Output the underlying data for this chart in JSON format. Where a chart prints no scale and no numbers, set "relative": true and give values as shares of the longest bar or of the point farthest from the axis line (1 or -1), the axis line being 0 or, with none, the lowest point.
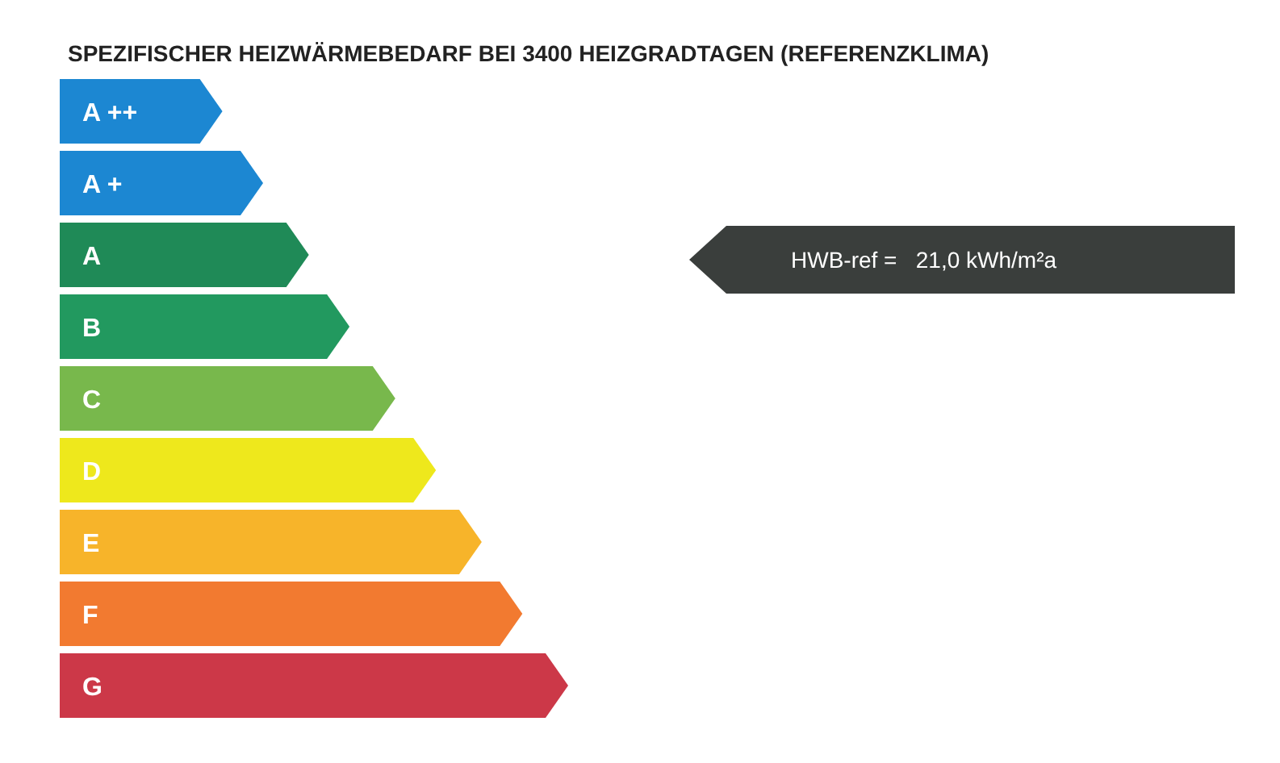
{
  "chart_data": {
    "type": "bar",
    "orientation": "horizontal",
    "relative": true,
    "title": "SPEZIFISCHER HEIZWÄRMEBEDARF BEI 3400 HEIZGRADTAGEN (REFERENZKLIMA)",
    "categories": [
      "A ++",
      "A +",
      "A",
      "B",
      "C",
      "D",
      "E",
      "F",
      "G"
    ],
    "values": [
      0.32,
      0.4,
      0.49,
      0.57,
      0.66,
      0.74,
      0.83,
      0.91,
      1
    ],
    "colors": [
      "#1c87d2",
      "#1c87d2",
      "#1f8a57",
      "#22995f",
      "#78b84c",
      "#eee81c",
      "#f7b42a",
      "#f27a30",
      "#cc3848"
    ],
    "annotations": [
      "HWB-ref =   21,0 kWh/m²a"
    ]
  }
}
